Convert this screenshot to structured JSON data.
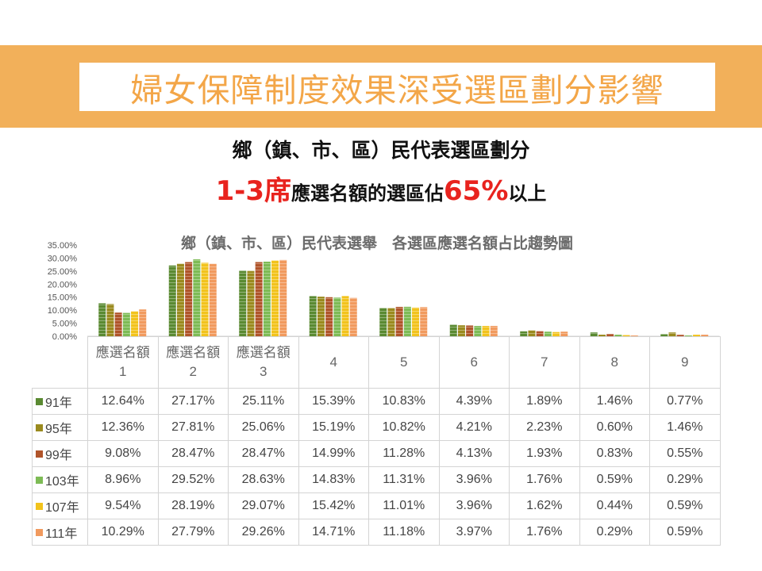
{
  "banner_title": "婦女保障制度效果深受選區劃分影響",
  "subtitle_line1": "鄉（鎮、市、區）民代表選區劃分",
  "subtitle_line2": {
    "part1": "1-3席",
    "part2": "應選名額的選區佔",
    "part3": "65%",
    "part4": "以上"
  },
  "chart_data": {
    "type": "bar",
    "title": "鄉（鎮、市、區）民代表選舉　各選區應選名額占比趨勢圖",
    "categories": [
      "應選名額 1",
      "應選名額 2",
      "應選名額 3",
      "4",
      "5",
      "6",
      "7",
      "8",
      "9"
    ],
    "category_lines": [
      [
        "應選名額",
        "1"
      ],
      [
        "應選名額",
        "2"
      ],
      [
        "應選名額",
        "3"
      ],
      [
        "4"
      ],
      [
        "5"
      ],
      [
        "6"
      ],
      [
        "7"
      ],
      [
        "8"
      ],
      [
        "9"
      ]
    ],
    "yticks": [
      "0.00%",
      "5.00%",
      "10.00%",
      "15.00%",
      "20.00%",
      "25.00%",
      "30.00%",
      "35.00%"
    ],
    "ylim": [
      0,
      35
    ],
    "legend_position": "table-left",
    "series": [
      {
        "name": "91年",
        "color": "#5a8a32",
        "values": [
          12.64,
          27.17,
          25.11,
          15.39,
          10.83,
          4.39,
          1.89,
          1.46,
          0.77
        ],
        "labels": [
          "12.64%",
          "27.17%",
          "25.11%",
          "15.39%",
          "10.83%",
          "4.39%",
          "1.89%",
          "1.46%",
          "0.77%"
        ]
      },
      {
        "name": "95年",
        "color": "#9a8a1e",
        "values": [
          12.36,
          27.81,
          25.06,
          15.19,
          10.82,
          4.21,
          2.23,
          0.6,
          1.46
        ],
        "labels": [
          "12.36%",
          "27.81%",
          "25.06%",
          "15.19%",
          "10.82%",
          "4.21%",
          "2.23%",
          "0.60%",
          "1.46%"
        ]
      },
      {
        "name": "99年",
        "color": "#b0542a",
        "values": [
          9.08,
          28.47,
          28.47,
          14.99,
          11.28,
          4.13,
          1.93,
          0.83,
          0.55
        ],
        "labels": [
          "9.08%",
          "28.47%",
          "28.47%",
          "14.99%",
          "11.28%",
          "4.13%",
          "1.93%",
          "0.83%",
          "0.55%"
        ]
      },
      {
        "name": "103年",
        "color": "#7dbb55",
        "values": [
          8.96,
          29.52,
          28.63,
          14.83,
          11.31,
          3.96,
          1.76,
          0.59,
          0.29
        ],
        "labels": [
          "8.96%",
          "29.52%",
          "28.63%",
          "14.83%",
          "11.31%",
          "3.96%",
          "1.76%",
          "0.59%",
          "0.29%"
        ]
      },
      {
        "name": "107年",
        "color": "#f2c31c",
        "values": [
          9.54,
          28.19,
          29.07,
          15.42,
          11.01,
          3.96,
          1.62,
          0.44,
          0.59
        ],
        "labels": [
          "9.54%",
          "28.19%",
          "29.07%",
          "15.42%",
          "11.01%",
          "3.96%",
          "1.62%",
          "0.44%",
          "0.59%"
        ]
      },
      {
        "name": "111年",
        "color": "#f19a5e",
        "values": [
          10.29,
          27.79,
          29.26,
          14.71,
          11.18,
          3.97,
          1.76,
          0.29,
          0.59
        ],
        "labels": [
          "10.29%",
          "27.79%",
          "29.26%",
          "14.71%",
          "11.18%",
          "3.97%",
          "1.76%",
          "0.29%",
          "0.59%"
        ]
      }
    ]
  }
}
